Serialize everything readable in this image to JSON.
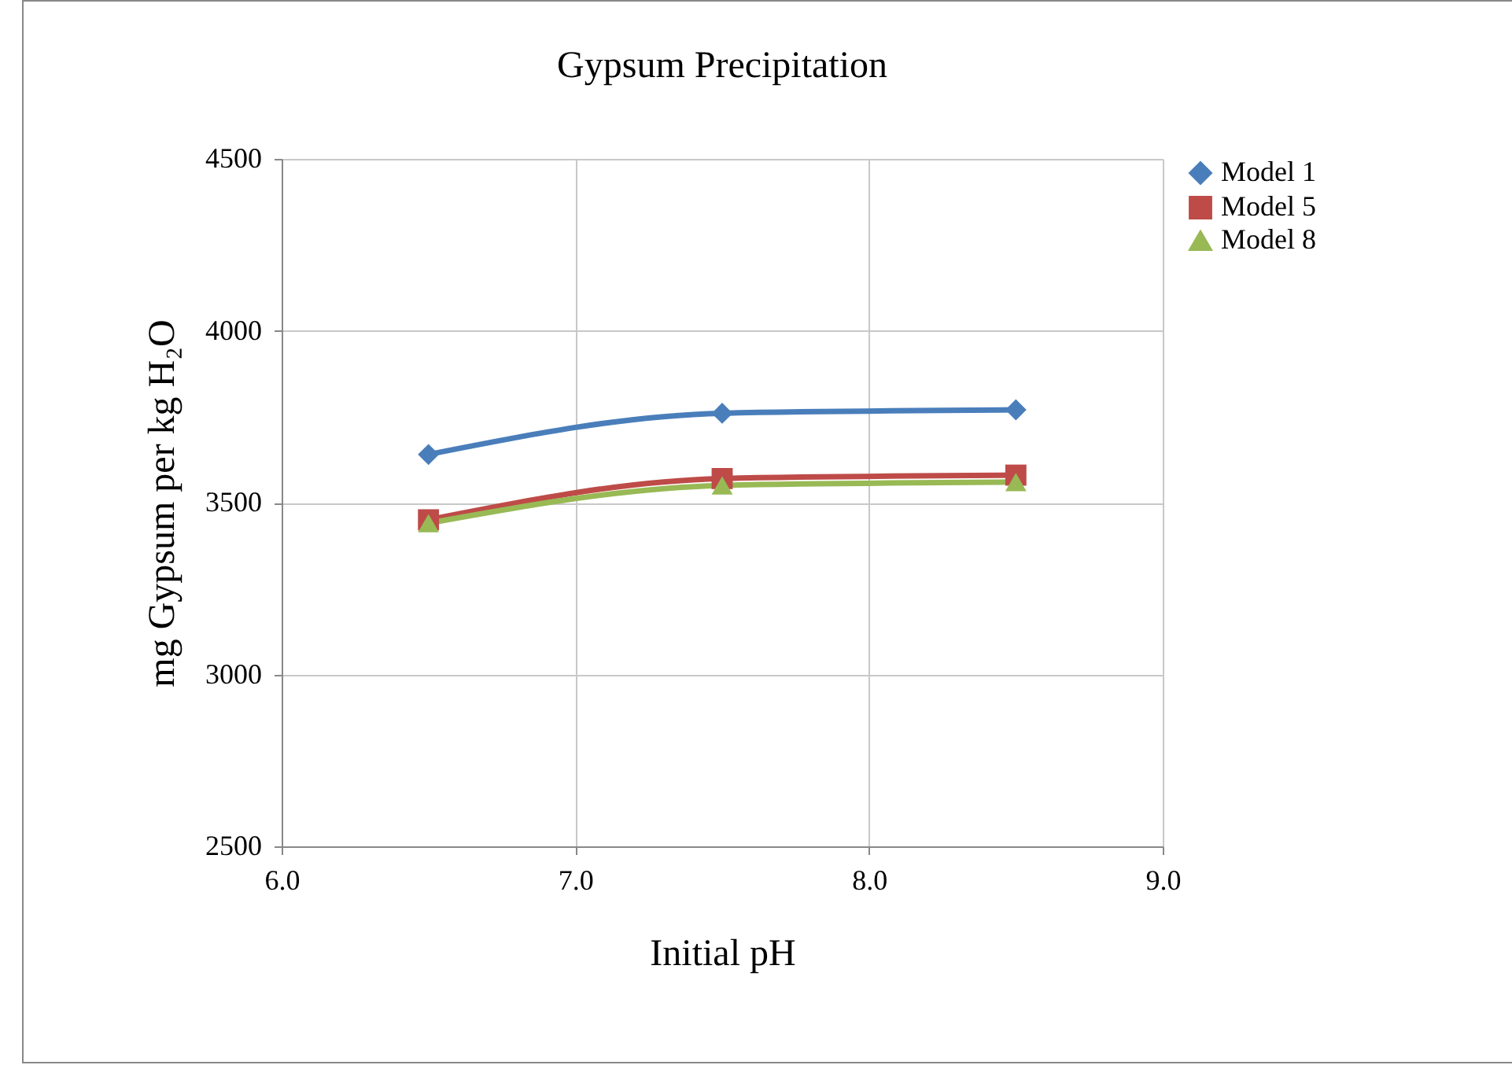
{
  "chart_data": {
    "type": "line",
    "title": "Gypsum Precipitation",
    "xlabel": "Initial pH",
    "ylabel": "mg Gypsum per kg H₂O",
    "x": [
      6.5,
      7.5,
      8.5
    ],
    "series": [
      {
        "name": "Model 1",
        "color": "#4a7ebb",
        "marker": "diamond",
        "values": [
          3640,
          3760,
          3770
        ]
      },
      {
        "name": "Model 5",
        "color": "#be4b48",
        "marker": "square",
        "values": [
          3450,
          3570,
          3580
        ]
      },
      {
        "name": "Model 8",
        "color": "#98b954",
        "marker": "triangle",
        "values": [
          3440,
          3550,
          3560
        ]
      }
    ],
    "xlim": [
      6.0,
      9.0
    ],
    "xticks": [
      {
        "value": 6,
        "label": "6.0"
      },
      {
        "value": 7,
        "label": "7.0"
      },
      {
        "value": 8,
        "label": "8.0"
      },
      {
        "value": 9,
        "label": "9.0"
      }
    ],
    "ylim": [
      2500,
      4500
    ],
    "yticks": [
      2500,
      3000,
      3500,
      4000,
      4500
    ],
    "grid": true,
    "legend": "right",
    "line_style": "solid"
  }
}
